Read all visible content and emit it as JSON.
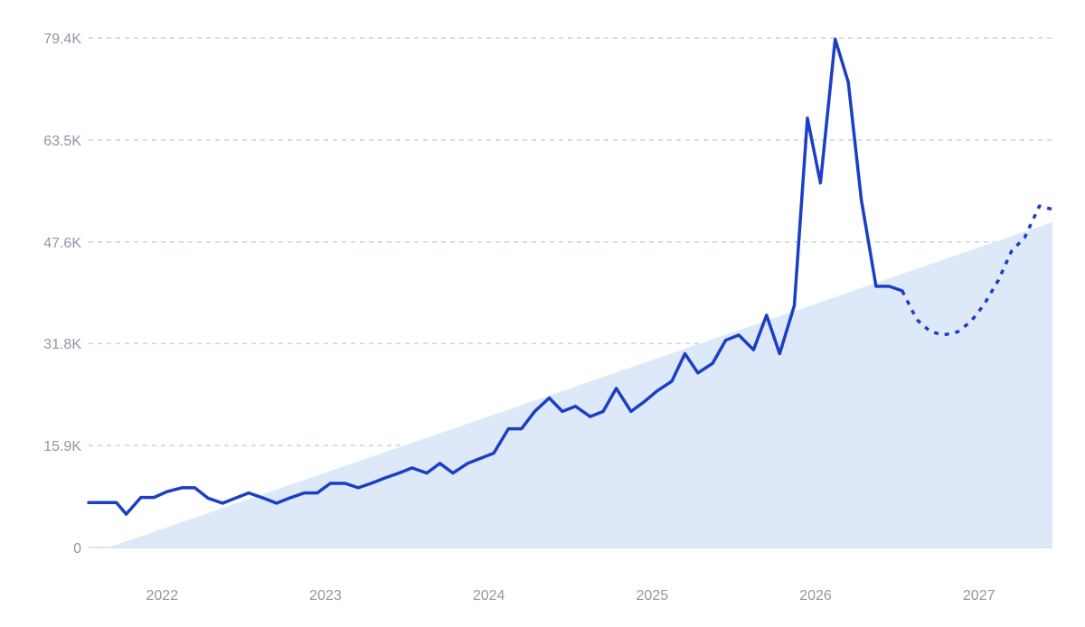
{
  "chart_data": {
    "type": "line",
    "title": "",
    "xlabel": "",
    "ylabel": "",
    "x_ticks": [
      "2022",
      "2023",
      "2024",
      "2025",
      "2026",
      "2027"
    ],
    "y_ticks": [
      "0",
      "15.9K",
      "31.8K",
      "47.6K",
      "63.5K",
      "79.4K"
    ],
    "y_tick_values": [
      0,
      15900,
      31800,
      47600,
      63500,
      79400
    ],
    "ylim": [
      0,
      79400
    ],
    "xlim": [
      2021.6,
      2027.5
    ],
    "grid": "horizontal dashed",
    "legend": "none",
    "colors": {
      "line": "#1b3fc4",
      "trend_fill": "#dde9f8",
      "grid": "#a9bfd3",
      "tick_text": "#8f96a3"
    },
    "trend_area": {
      "x": [
        2021.72,
        2027.5
      ],
      "y": [
        0,
        50700
      ]
    },
    "series": [
      {
        "style": "solid",
        "x": [
          2021.6,
          2021.77,
          2021.83,
          2021.92,
          2022.0,
          2022.08,
          2022.17,
          2022.25,
          2022.33,
          2022.42,
          2022.5,
          2022.58,
          2022.67,
          2022.75,
          2022.83,
          2022.92,
          2023.0,
          2023.08,
          2023.17,
          2023.25,
          2023.33,
          2023.42,
          2023.5,
          2023.58,
          2023.67,
          2023.75,
          2023.83,
          2023.92,
          2024.0,
          2024.08,
          2024.17,
          2024.25,
          2024.33,
          2024.42,
          2024.5,
          2024.58,
          2024.67,
          2024.75,
          2024.83,
          2024.92,
          2025.0,
          2025.08,
          2025.17,
          2025.25,
          2025.33,
          2025.42,
          2025.5,
          2025.58,
          2025.67,
          2025.75,
          2025.83,
          2025.92,
          2026.0,
          2026.08,
          2026.17,
          2026.25,
          2026.33,
          2026.42,
          2026.5,
          2026.58
        ],
        "y": [
          7000,
          7000,
          5200,
          7800,
          7800,
          8700,
          9300,
          9300,
          7700,
          6900,
          7700,
          8500,
          7700,
          6900,
          7700,
          8500,
          8500,
          10000,
          10000,
          9300,
          10000,
          10900,
          11600,
          12400,
          11600,
          13100,
          11600,
          13100,
          13900,
          14700,
          18500,
          18500,
          21200,
          23300,
          21200,
          22000,
          20400,
          21200,
          24800,
          21200,
          22700,
          24400,
          25900,
          30200,
          27200,
          28700,
          32300,
          33100,
          30800,
          36200,
          30200,
          37700,
          66900,
          56800,
          79200,
          72500,
          54200,
          40700,
          40700,
          40000
        ]
      },
      {
        "style": "dashed",
        "x": [
          2026.58,
          2026.67,
          2026.75,
          2026.83,
          2026.92,
          2027.0,
          2027.08,
          2027.17,
          2027.25,
          2027.33,
          2027.42,
          2027.5
        ],
        "y": [
          40000,
          35500,
          33700,
          33100,
          33600,
          35200,
          37800,
          41700,
          46200,
          48300,
          53200,
          52700
        ]
      }
    ]
  }
}
